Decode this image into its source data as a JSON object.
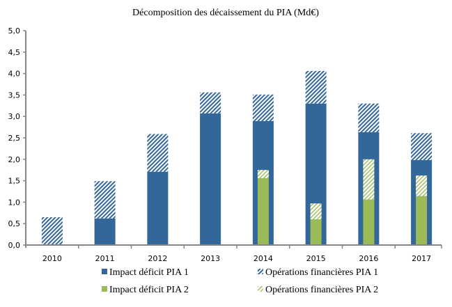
{
  "chart_data": {
    "type": "bar",
    "stacked": true,
    "title": "Décomposition des décaissement du PIA (Md€)",
    "xlabel": "",
    "ylabel": "",
    "ylim": [
      0,
      5
    ],
    "ytick_step": 0.5,
    "yticks": [
      "0,0",
      "0,5",
      "1,0",
      "1,5",
      "2,0",
      "2,5",
      "3,0",
      "3,5",
      "4,0",
      "4,5",
      "5,0"
    ],
    "grid": false,
    "legend_position": "bottom",
    "categories": [
      "2010",
      "2011",
      "2012",
      "2013",
      "2014",
      "2015",
      "2016",
      "2017"
    ],
    "series": [
      {
        "name": "Impact déficit PIA 1",
        "group": "PIA 1",
        "style": "solid",
        "color": "#336699",
        "values": [
          0.0,
          0.62,
          1.71,
          3.07,
          2.89,
          3.3,
          2.63,
          1.98
        ]
      },
      {
        "name": "Opérations financières PIA 1",
        "group": "PIA 1",
        "style": "hatched",
        "color": "#336699",
        "values": [
          0.65,
          0.87,
          0.88,
          0.49,
          0.62,
          0.76,
          0.67,
          0.63
        ]
      },
      {
        "name": "Impact déficit PIA 2",
        "group": "PIA 2",
        "style": "solid",
        "color": "#9BBB59",
        "values": [
          0.0,
          0.0,
          0.0,
          0.0,
          1.56,
          0.6,
          1.06,
          1.14
        ]
      },
      {
        "name": "Opérations financières PIA 2",
        "group": "PIA 2",
        "style": "hatched",
        "color": "#9BBB59",
        "values": [
          0.0,
          0.0,
          0.0,
          0.0,
          0.19,
          0.37,
          0.94,
          0.48
        ]
      }
    ]
  }
}
